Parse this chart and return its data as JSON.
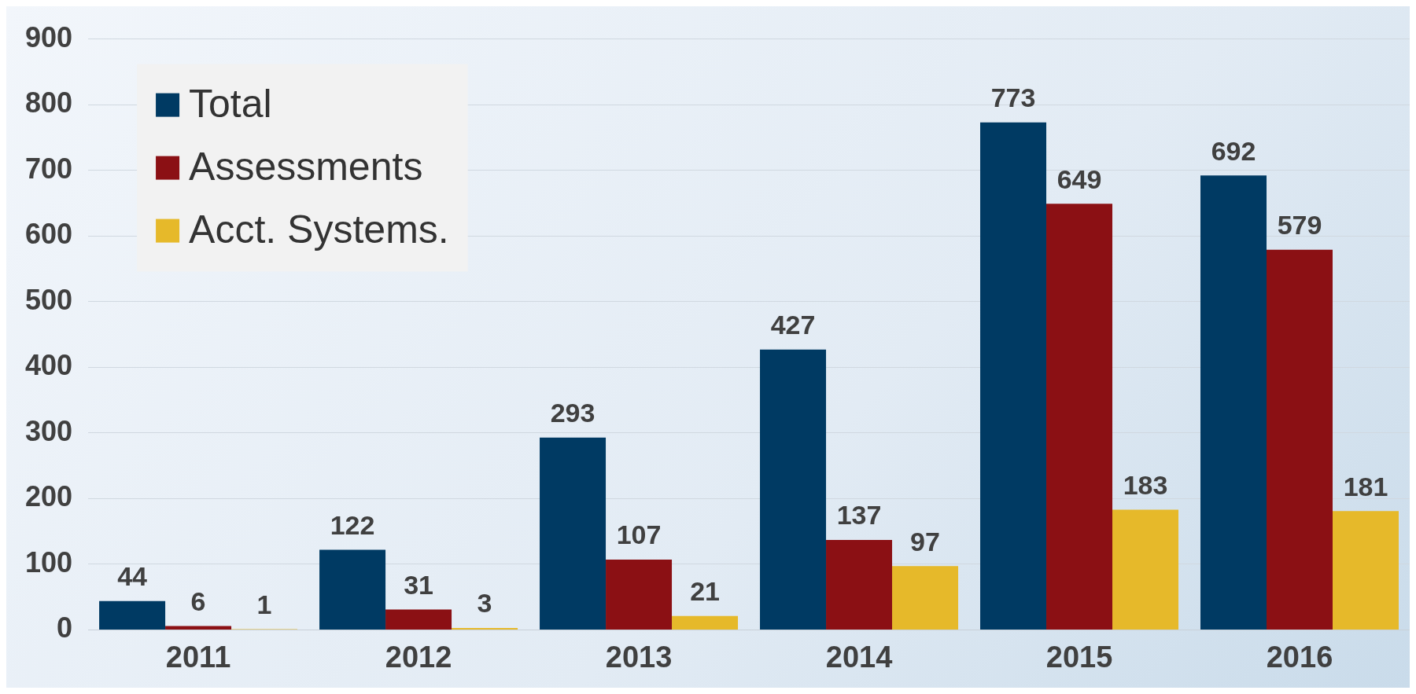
{
  "chart_data": {
    "type": "bar",
    "categories": [
      "2011",
      "2012",
      "2013",
      "2014",
      "2015",
      "2016"
    ],
    "series": [
      {
        "name": "Total",
        "color": "#003a63",
        "values": [
          44,
          122,
          293,
          427,
          773,
          692
        ]
      },
      {
        "name": "Assessments",
        "color": "#8b1014",
        "values": [
          6,
          31,
          107,
          137,
          649,
          579
        ]
      },
      {
        "name": "Acct. Systems.",
        "color": "#e6b92a",
        "values": [
          1,
          3,
          21,
          97,
          183,
          181
        ]
      }
    ],
    "ylim": [
      0,
      900
    ],
    "yticks": [
      0,
      100,
      200,
      300,
      400,
      500,
      600,
      700,
      800,
      900
    ],
    "grid": "y",
    "legend": "top left",
    "data_labels": true
  }
}
